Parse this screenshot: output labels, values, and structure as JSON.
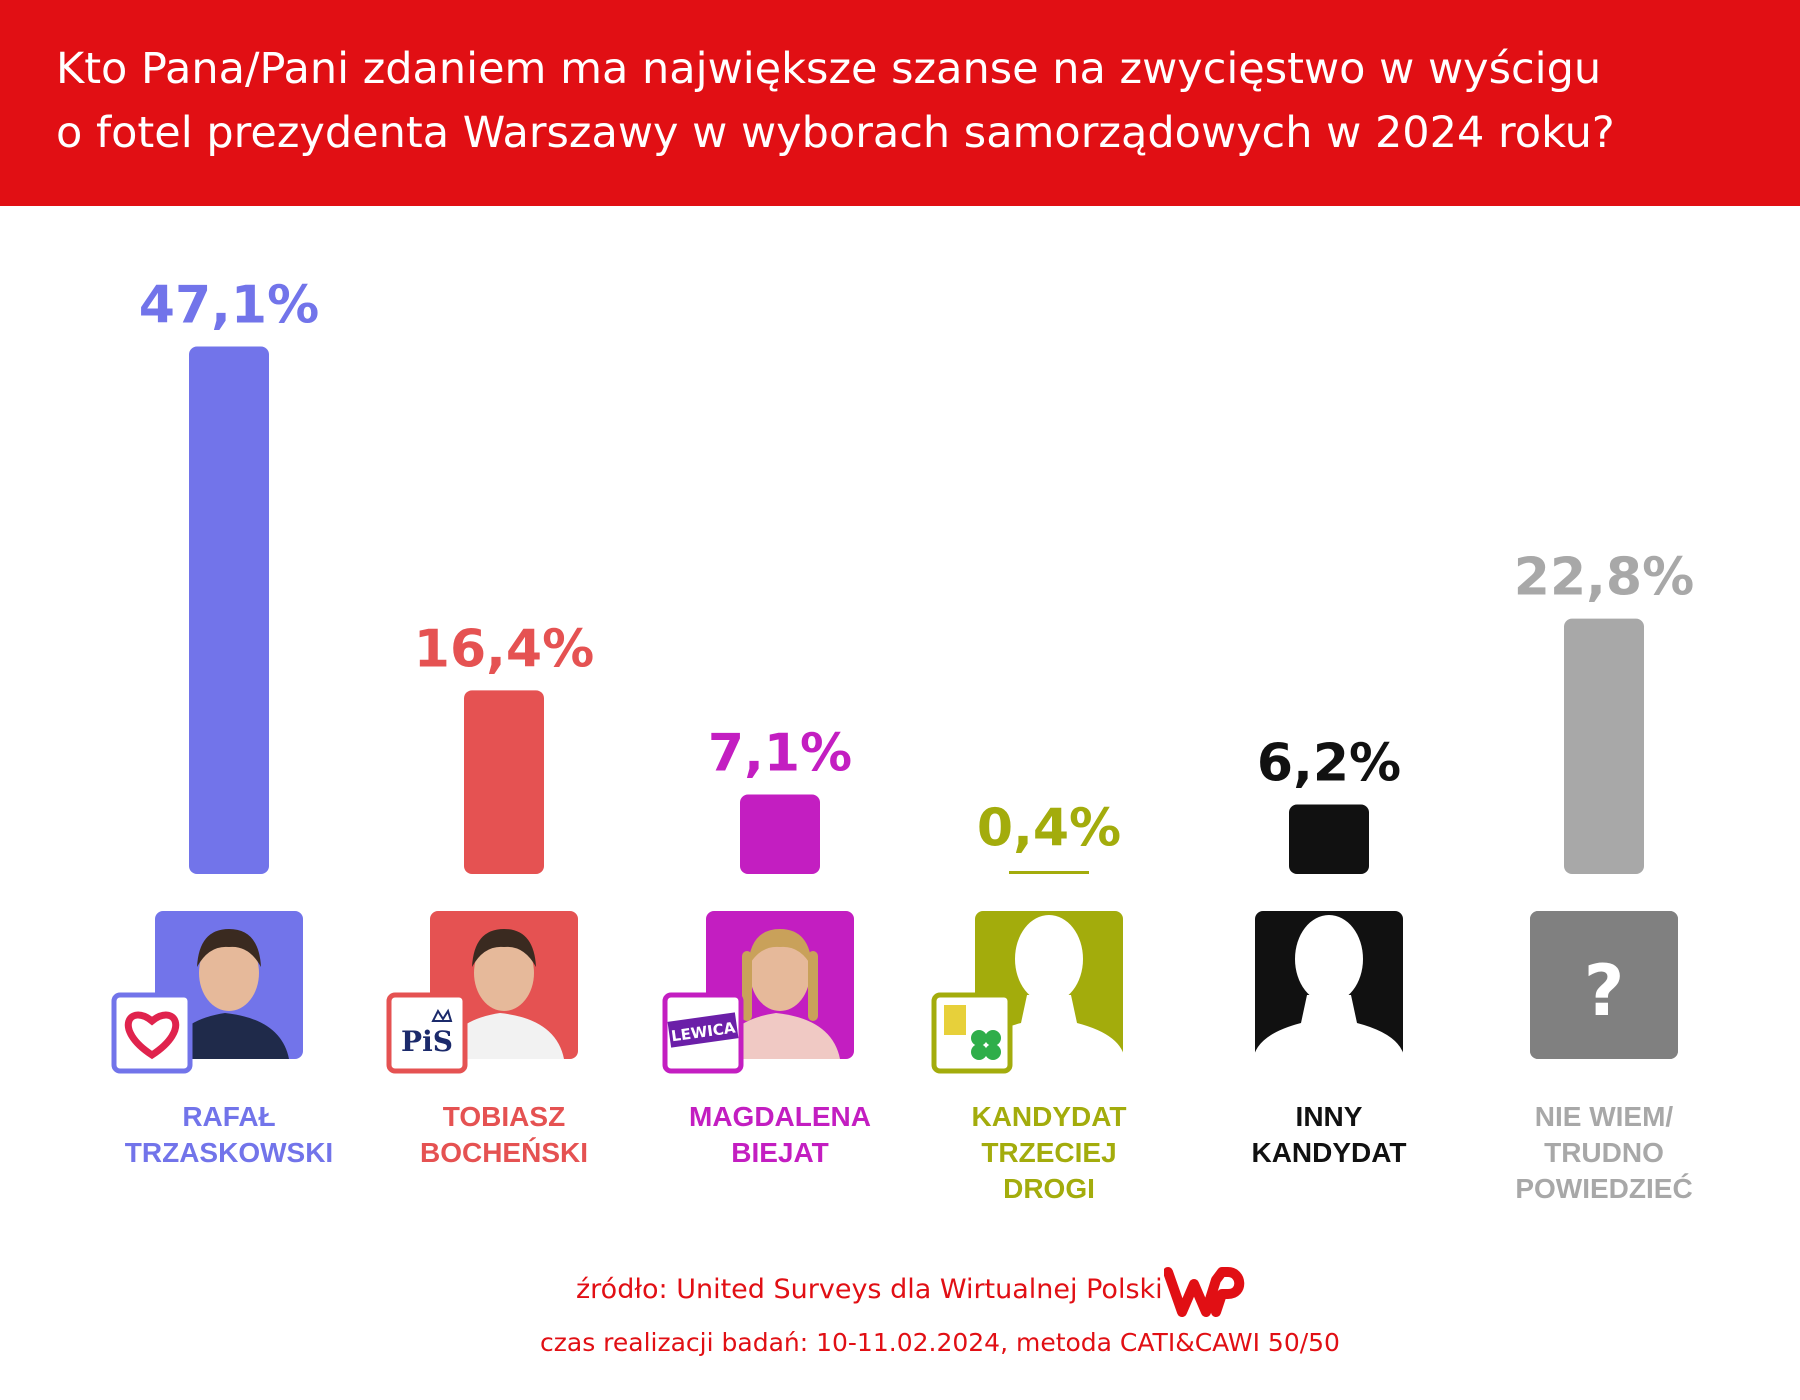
{
  "header": {
    "title_line1": "Kto Pana/Pani zdaniem ma największe szanse na zwycięstwo w wyścigu",
    "title_line2": "o fotel prezydenta Warszawy w wyborach samorządowych w 2024 roku?"
  },
  "chart_data": {
    "type": "bar",
    "title": "Kto Pana/Pani zdaniem ma największe szanse na zwycięstwo w wyścigu o fotel prezydenta Warszawy w wyborach samorządowych w 2024 roku?",
    "categories": [
      "RAFAŁ TRZASKOWSKI",
      "TOBIASZ BOCHEŃSKI",
      "MAGDALENA BIEJAT",
      "KANDYDAT TRZECIEJ DROGI",
      "INNY KANDYDAT",
      "NIE WIEM/ TRUDNO POWIEDZIEĆ"
    ],
    "category_lines": [
      [
        "RAFAŁ",
        "TRZASKOWSKI"
      ],
      [
        "TOBIASZ",
        "BOCHEŃSKI"
      ],
      [
        "MAGDALENA",
        "BIEJAT"
      ],
      [
        "KANDYDAT",
        "TRZECIEJ",
        "DROGI"
      ],
      [
        "INNY",
        "KANDYDAT"
      ],
      [
        "NIE WIEM/",
        "TRUDNO",
        "POWIEDZIEĆ"
      ]
    ],
    "values": [
      47.1,
      16.4,
      7.1,
      0.4,
      6.2,
      22.8
    ],
    "value_labels": [
      "47,1%",
      "16,4%",
      "7,1%",
      "0,4%",
      "6,2%",
      "22,8%"
    ],
    "colors": [
      "#7274ea",
      "#e55252",
      "#c31ec1",
      "#a3ac0c",
      "#111111",
      "#a8a8a8"
    ],
    "icons": [
      "photo-trzaskowski",
      "photo-bochenski",
      "photo-biejat",
      "silhouette-icon",
      "silhouette-icon",
      "question-mark-icon"
    ],
    "party_badges": [
      "heart-logo",
      "PiS",
      "LEWICA",
      "2050-logo",
      "",
      ""
    ],
    "xlabel": "",
    "ylabel": "",
    "ylim": [
      0,
      50
    ],
    "grid": false
  },
  "footer": {
    "source": "źródło: United Surveys dla Wirtualnej Polski",
    "date": "czas realizacji badań: 10-11.02.2024, metoda CATI&CAWI 50/50",
    "logo_color": "#e10f14"
  }
}
